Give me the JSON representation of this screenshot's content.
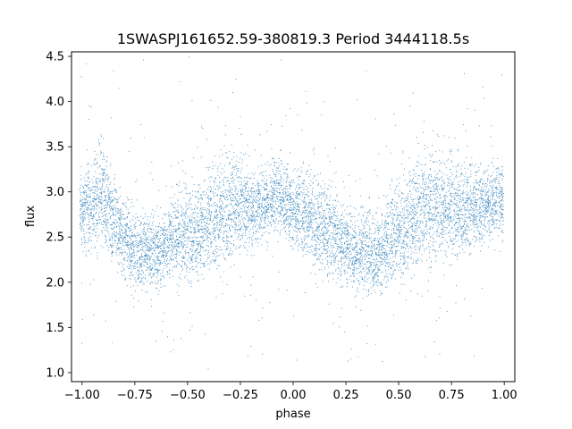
{
  "chart_data": {
    "type": "scatter",
    "title": "1SWASPJ161652.59-380819.3 Period 3444118.5s",
    "xlabel": "phase",
    "ylabel": "flux",
    "xlim": [
      -1.05,
      1.05
    ],
    "ylim": [
      0.9,
      4.55
    ],
    "xticks": [
      -1.0,
      -0.75,
      -0.5,
      -0.25,
      0.0,
      0.25,
      0.5,
      0.75,
      1.0
    ],
    "xtick_labels": [
      "−1.00",
      "−0.75",
      "−0.50",
      "−0.25",
      "0.00",
      "0.25",
      "0.50",
      "0.75",
      "1.00"
    ],
    "yticks": [
      1.0,
      1.5,
      2.0,
      2.5,
      3.0,
      3.5,
      4.0,
      4.5
    ],
    "ytick_labels": [
      "1.0",
      "1.5",
      "2.0",
      "2.5",
      "3.0",
      "3.5",
      "4.0",
      "4.5"
    ],
    "grid": false,
    "marker_color": "#1f77b4",
    "series": [
      {
        "points_x": [
          -1.0,
          -0.97,
          -0.94,
          -0.91,
          -0.88,
          -0.85,
          -0.82,
          -0.79,
          -0.76,
          -0.73,
          -0.7,
          -0.67,
          -0.64,
          -0.61,
          -0.58,
          -0.55,
          -0.52,
          -0.49,
          -0.46,
          -0.43,
          -0.4,
          -0.37,
          -0.34,
          -0.31,
          -0.28,
          -0.25,
          -0.22,
          -0.19,
          -0.16,
          -0.13,
          -0.1,
          -0.07,
          -0.04,
          -0.01,
          0.02,
          0.05,
          0.08,
          0.11,
          0.14,
          0.17,
          0.2,
          0.23,
          0.26,
          0.29,
          0.32,
          0.35,
          0.38,
          0.41,
          0.44,
          0.47,
          0.5,
          0.53,
          0.56,
          0.59,
          0.62,
          0.65,
          0.68,
          0.71,
          0.74,
          0.77,
          0.8,
          0.83,
          0.86,
          0.89,
          0.92,
          0.95,
          0.98
        ],
        "points_y": [
          2.8,
          2.85,
          2.9,
          2.95,
          2.85,
          2.7,
          2.55,
          2.5,
          2.4,
          2.35,
          2.35,
          2.35,
          2.3,
          2.4,
          2.5,
          2.55,
          2.55,
          2.5,
          2.55,
          2.65,
          2.7,
          2.75,
          2.8,
          2.85,
          2.85,
          2.85,
          2.8,
          2.8,
          2.85,
          2.9,
          2.95,
          2.95,
          2.9,
          2.85,
          2.8,
          2.8,
          2.75,
          2.7,
          2.6,
          2.55,
          2.5,
          2.45,
          2.4,
          2.35,
          2.35,
          2.35,
          2.3,
          2.35,
          2.45,
          2.55,
          2.6,
          2.65,
          2.7,
          2.75,
          2.8,
          2.85,
          2.85,
          2.85,
          2.85,
          2.8,
          2.8,
          2.85,
          2.85,
          2.85,
          2.9,
          2.95,
          2.9
        ],
        "spread": [
          0.35,
          0.4,
          0.45,
          0.5,
          0.45,
          0.4,
          0.4,
          0.4,
          0.4,
          0.35,
          0.35,
          0.35,
          0.35,
          0.35,
          0.4,
          0.45,
          0.45,
          0.45,
          0.45,
          0.5,
          0.5,
          0.55,
          0.55,
          0.55,
          0.5,
          0.45,
          0.4,
          0.4,
          0.4,
          0.35,
          0.35,
          0.35,
          0.35,
          0.4,
          0.4,
          0.45,
          0.45,
          0.45,
          0.45,
          0.45,
          0.45,
          0.4,
          0.4,
          0.4,
          0.4,
          0.4,
          0.4,
          0.4,
          0.45,
          0.5,
          0.5,
          0.5,
          0.5,
          0.5,
          0.55,
          0.55,
          0.55,
          0.5,
          0.5,
          0.45,
          0.45,
          0.45,
          0.4,
          0.4,
          0.35,
          0.35,
          0.35
        ]
      }
    ]
  }
}
